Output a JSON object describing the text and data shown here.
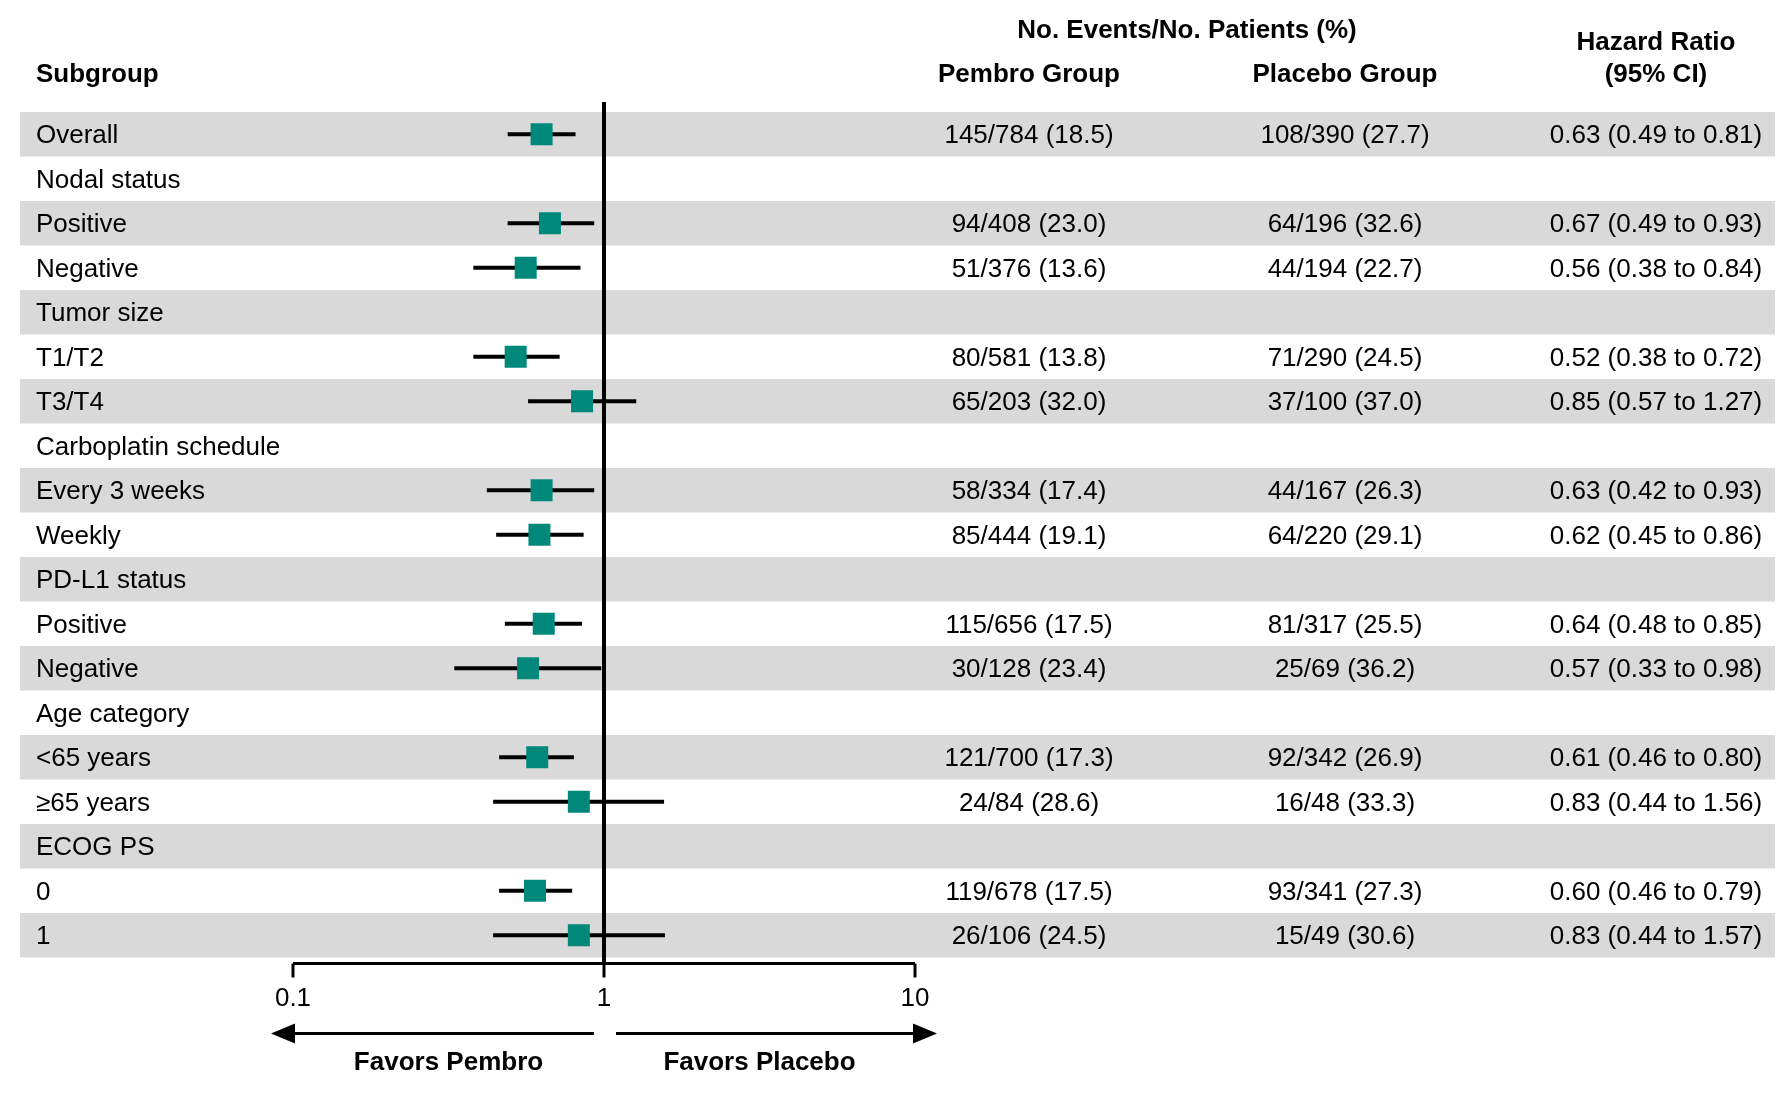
{
  "chart_data": {
    "type": "scatter",
    "orientation": "horizontal",
    "ylabel": "Subgroup",
    "categories": [
      "Overall",
      "Nodal status",
      "Positive",
      "Negative",
      "Tumor size",
      "T1/T2",
      "T3/T4",
      "Carboplatin schedule",
      "Every 3 weeks",
      "Weekly",
      "PD-L1 status",
      "Positive",
      "Negative",
      "Age category",
      "<65 years",
      "≥65 years",
      "ECOG PS",
      "0",
      "1"
    ],
    "series": [
      {
        "type": "other",
        "name": "Pembro Group",
        "values": [
          null,
          null,
          null,
          null,
          null,
          null,
          null,
          null,
          null,
          null,
          null,
          null,
          null,
          null,
          null,
          null,
          null,
          null,
          null
        ],
        "value_labels": [
          "145/784 (18.5)",
          null,
          "94/408 (23.0)",
          "51/376 (13.6)",
          null,
          "80/581 (13.8)",
          "65/203 (32.0)",
          null,
          "58/334 (17.4)",
          "85/444 (19.1)",
          null,
          "115/656 (17.5)",
          "30/128 (23.4)",
          null,
          "121/700 (17.3)",
          "24/84 (28.6)",
          null,
          "119/678 (17.5)",
          "26/106 (24.5)"
        ]
      },
      {
        "type": "other",
        "name": "Placebo Group",
        "values": [
          null,
          null,
          null,
          null,
          null,
          null,
          null,
          null,
          null,
          null,
          null,
          null,
          null,
          null,
          null,
          null,
          null,
          null,
          null
        ],
        "value_labels": [
          "108/390 (27.7)",
          null,
          "64/196 (32.6)",
          "44/194 (22.7)",
          null,
          "71/290 (24.5)",
          "37/100 (37.0)",
          null,
          "44/167 (26.3)",
          "64/220 (29.1)",
          null,
          "81/317 (25.5)",
          "25/69 (36.2)",
          null,
          "92/342 (26.9)",
          "16/48 (33.3)",
          null,
          "93/341 (27.3)",
          "15/49 (30.6)"
        ]
      },
      {
        "name": "Hazard Ratio\n(95% CI)",
        "color": "#00897b",
        "marker": "square",
        "values": [
          0.63,
          null,
          0.67,
          0.56,
          null,
          0.52,
          0.85,
          null,
          0.63,
          0.62,
          null,
          0.64,
          0.57,
          null,
          0.61,
          0.83,
          null,
          0.6,
          0.83
        ],
        "errors": [
          [
            0.49,
            0.81
          ],
          null,
          [
            0.49,
            0.93
          ],
          [
            0.38,
            0.84
          ],
          null,
          [
            0.38,
            0.72
          ],
          [
            0.57,
            1.27
          ],
          null,
          [
            0.42,
            0.93
          ],
          [
            0.45,
            0.86
          ],
          null,
          [
            0.48,
            0.85
          ],
          [
            0.33,
            0.98
          ],
          null,
          [
            0.46,
            0.8
          ],
          [
            0.44,
            1.56
          ],
          null,
          [
            0.46,
            0.79
          ],
          [
            0.44,
            1.57
          ]
        ],
        "value_labels": [
          "0.63 (0.49 to 0.81)",
          null,
          "0.67 (0.49 to 0.93)",
          "0.56 (0.38 to 0.84)",
          null,
          "0.52 (0.38 to 0.72)",
          "0.85 (0.57 to 1.27)",
          null,
          "0.63 (0.42 to 0.93)",
          "0.62 (0.45 to 0.86)",
          null,
          "0.64 (0.48 to 0.85)",
          "0.57 (0.33 to 0.98)",
          null,
          "0.61 (0.46 to 0.80)",
          "0.83 (0.44 to 1.56)",
          null,
          "0.60 (0.46 to 0.79)",
          "0.83 (0.44 to 1.57)"
        ]
      }
    ],
    "log": "x",
    "xlim": [
      0.1,
      10
    ],
    "xticks": [
      0.1,
      1,
      10
    ],
    "ref_lines": [
      {
        "axis": "x",
        "value": 1,
        "color": "#000000"
      }
    ],
    "annotations": [
      "No. Events/No. Patients (%)",
      "Favors Pembro",
      "Favors Placebo"
    ]
  }
}
